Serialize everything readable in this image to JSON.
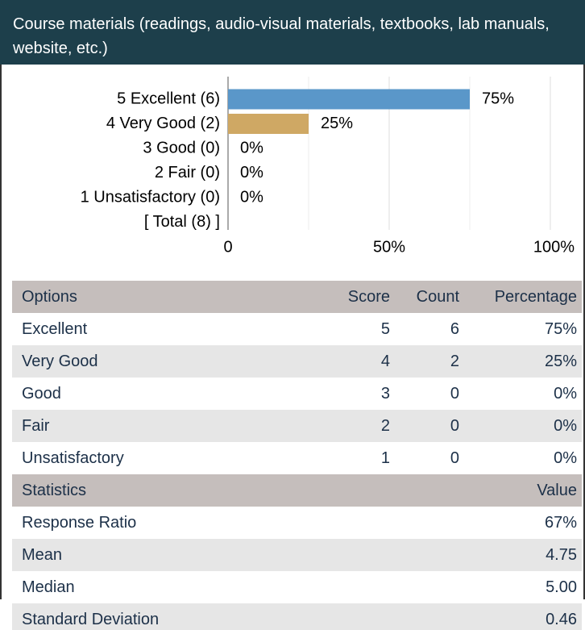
{
  "header": {
    "title": "Course materials (readings, audio-visual materials, textbooks, lab manuals, website, etc.)"
  },
  "chart_data": {
    "type": "bar",
    "orientation": "horizontal",
    "categories": [
      "5 Excellent (6)",
      "4 Very Good (2)",
      "3 Good (0)",
      "2 Fair (0)",
      "1 Unsatisfactory (0)"
    ],
    "values": [
      75,
      25,
      0,
      0,
      0
    ],
    "value_labels": [
      "75%",
      "25%",
      "0%",
      "0%",
      "0%"
    ],
    "colors": [
      "#5a97c9",
      "#cfa864",
      "#5a97c9",
      "#cfa864",
      "#5a97c9"
    ],
    "total_label": "[ Total (8) ]",
    "xlim": [
      0,
      100
    ],
    "xticks": [
      0,
      {
        "value": 50,
        "label": "50%"
      },
      {
        "value": 100,
        "label": "100%"
      }
    ],
    "minor_xticks": [
      25,
      75
    ],
    "grid": true
  },
  "table": {
    "columns": [
      "Options",
      "Score",
      "Count",
      "Percentage"
    ],
    "rows": [
      [
        "Excellent",
        5,
        6,
        "75%"
      ],
      [
        "Very Good",
        4,
        2,
        "25%"
      ],
      [
        "Good",
        3,
        0,
        "0%"
      ],
      [
        "Fair",
        2,
        0,
        "0%"
      ],
      [
        "Unsatisfactory",
        1,
        0,
        "0%"
      ]
    ]
  },
  "statistics": {
    "columns": [
      "Statistics",
      "Value"
    ],
    "rows": [
      [
        "Response Ratio",
        "67%"
      ],
      [
        "Mean",
        "4.75"
      ],
      [
        "Median",
        "5.00"
      ],
      [
        "Standard Deviation",
        "0.46"
      ]
    ]
  }
}
